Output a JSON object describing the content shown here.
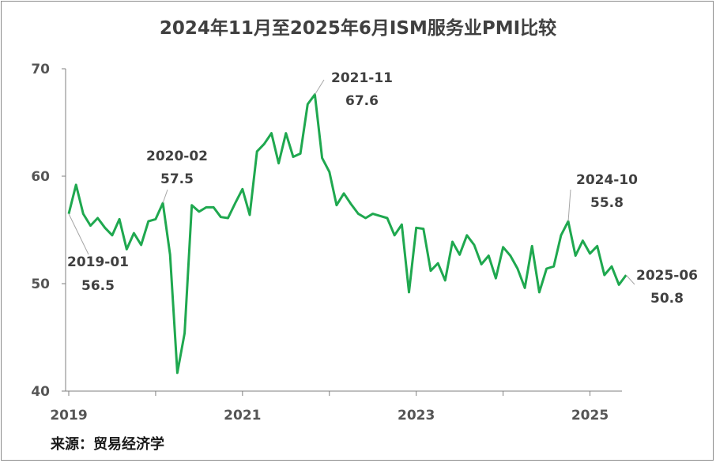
{
  "chart_data": {
    "type": "line",
    "title": "2024年11月至2025年6月ISM服务业PMI比较",
    "xlabel": "",
    "ylabel": "",
    "ylim": [
      40,
      70
    ],
    "yticks": [
      "40",
      "50",
      "60",
      "70"
    ],
    "xticks": [
      "2019",
      "2021",
      "2023",
      "2025"
    ],
    "grid": false,
    "legend": "none",
    "series": [
      {
        "color": "#1fa84f",
        "x": [
          "2019-01",
          "2019-02",
          "2019-03",
          "2019-04",
          "2019-05",
          "2019-06",
          "2019-07",
          "2019-08",
          "2019-09",
          "2019-10",
          "2019-11",
          "2019-12",
          "2020-01",
          "2020-02",
          "2020-03",
          "2020-04",
          "2020-05",
          "2020-06",
          "2020-07",
          "2020-08",
          "2020-09",
          "2020-10",
          "2020-11",
          "2020-12",
          "2021-01",
          "2021-02",
          "2021-03",
          "2021-04",
          "2021-05",
          "2021-06",
          "2021-07",
          "2021-08",
          "2021-09",
          "2021-10",
          "2021-11",
          "2021-12",
          "2022-01",
          "2022-02",
          "2022-03",
          "2022-04",
          "2022-05",
          "2022-06",
          "2022-07",
          "2022-08",
          "2022-09",
          "2022-10",
          "2022-11",
          "2022-12",
          "2023-01",
          "2023-02",
          "2023-03",
          "2023-04",
          "2023-05",
          "2023-06",
          "2023-07",
          "2023-08",
          "2023-09",
          "2023-10",
          "2023-11",
          "2023-12",
          "2024-01",
          "2024-02",
          "2024-03",
          "2024-04",
          "2024-05",
          "2024-06",
          "2024-07",
          "2024-08",
          "2024-09",
          "2024-10",
          "2024-11",
          "2024-12",
          "2025-01",
          "2025-02",
          "2025-03",
          "2025-04",
          "2025-05",
          "2025-06"
        ],
        "values": [
          56.5,
          59.2,
          56.5,
          55.4,
          56.1,
          55.2,
          54.5,
          56.0,
          53.2,
          54.7,
          53.6,
          55.8,
          56.0,
          57.5,
          52.7,
          41.7,
          45.4,
          57.3,
          56.7,
          57.1,
          57.1,
          56.2,
          56.1,
          57.5,
          58.8,
          56.4,
          62.3,
          63.0,
          64.0,
          61.2,
          64.0,
          61.8,
          62.1,
          66.7,
          67.6,
          61.7,
          60.4,
          57.3,
          58.4,
          57.4,
          56.5,
          56.1,
          56.5,
          56.3,
          56.1,
          54.5,
          55.5,
          49.2,
          55.2,
          55.1,
          51.2,
          51.9,
          50.3,
          53.9,
          52.7,
          54.5,
          53.6,
          51.8,
          52.6,
          50.5,
          53.4,
          52.6,
          51.4,
          49.6,
          53.5,
          49.2,
          51.4,
          51.6,
          54.5,
          55.8,
          52.6,
          54.0,
          52.8,
          53.5,
          50.8,
          51.6,
          49.9,
          50.8
        ]
      }
    ],
    "annotations": [
      {
        "date": "2019-01",
        "value": "56.5"
      },
      {
        "date": "2020-02",
        "value": "57.5"
      },
      {
        "date": "2021-11",
        "value": "67.6"
      },
      {
        "date": "2024-10",
        "value": "55.8"
      },
      {
        "date": "2025-06",
        "value": "50.8"
      }
    ]
  },
  "source_text": "来源：贸易经济学"
}
